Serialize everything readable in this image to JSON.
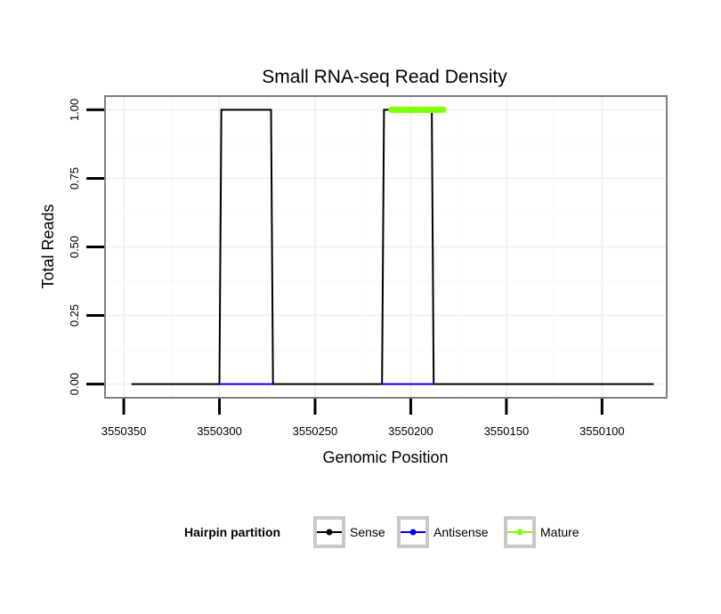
{
  "chart_data": {
    "type": "line",
    "title": "Small RNA-seq Read Density",
    "xlabel": "Genomic Position",
    "ylabel": "Total Reads",
    "x_reversed": true,
    "xlim": [
      3550359.8,
      3550066.2
    ],
    "ylim": [
      -0.05,
      1.05
    ],
    "x_ticks": [
      3550350,
      3550300,
      3550250,
      3550200,
      3550150,
      3550100
    ],
    "x_tick_labels": [
      "3550350",
      "3550300",
      "3550250",
      "3550200",
      "3550150",
      "3550100"
    ],
    "y_ticks": [
      0,
      0.25,
      0.5,
      0.75,
      1.0
    ],
    "y_tick_labels": [
      "0.00",
      "0.25",
      "0.50",
      "0.75",
      "1.00"
    ],
    "grid": true,
    "legend": {
      "title": "Hairpin partition",
      "position": "bottom",
      "entries": [
        {
          "label": "Sense",
          "color": "#000000"
        },
        {
          "label": "Antisense",
          "color": "#0000ff"
        },
        {
          "label": "Mature",
          "color": "#7fff00"
        }
      ]
    },
    "series": [
      {
        "name": "Sense",
        "color": "#000000",
        "x": [
          3550346,
          3550300,
          3550299,
          3550273,
          3550272,
          3550215,
          3550214,
          3550189,
          3550188,
          3550073
        ],
        "y": [
          0,
          0,
          1,
          1,
          0,
          0,
          1,
          1,
          0,
          0
        ]
      },
      {
        "name": "Antisense",
        "color": "#0000ff",
        "x": [
          3550300,
          3550272,
          3550215,
          3550188
        ],
        "y": [
          0,
          0,
          0,
          0
        ]
      },
      {
        "name": "Mature",
        "color": "#7fff00",
        "x": [
          3550210,
          3550183
        ],
        "y": [
          1,
          1
        ]
      }
    ]
  }
}
